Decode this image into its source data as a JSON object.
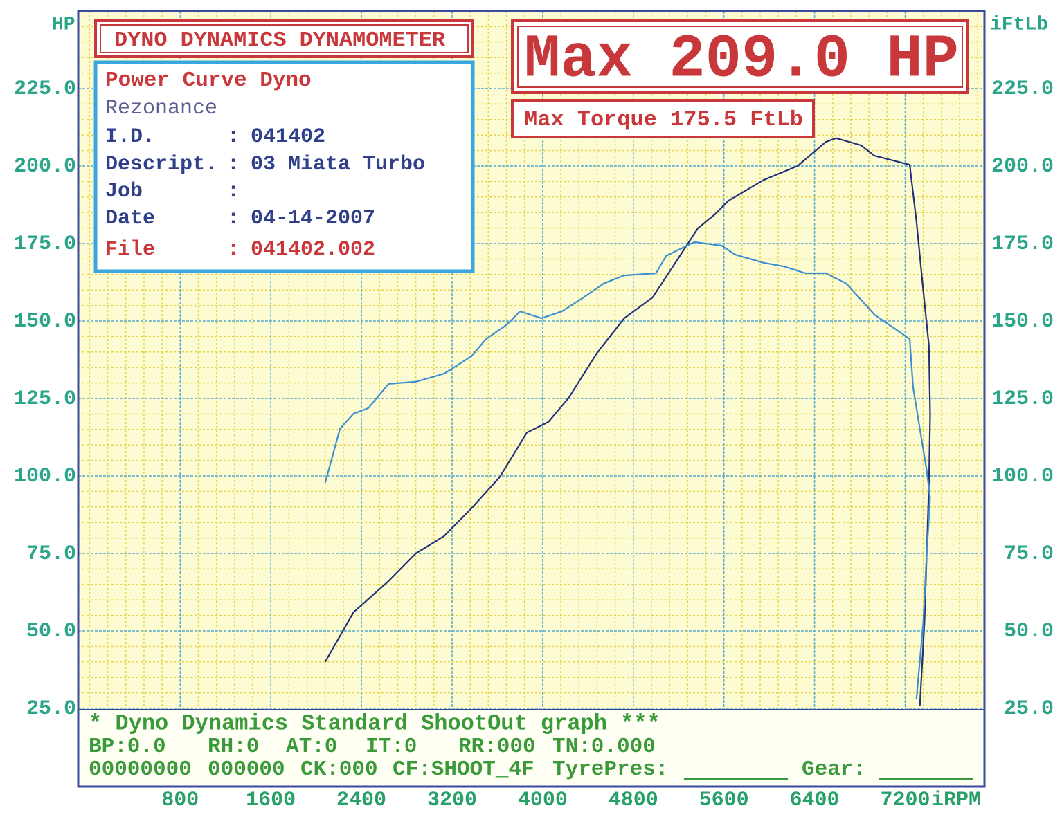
{
  "chart_data": {
    "type": "line",
    "title": "DYNO DYNAMICS DYNAMOMETER",
    "annotations": {
      "max_power": "Max 209.0 HP",
      "max_torque": "Max Torque 175.5 FtLb"
    },
    "y_label": "HP",
    "y2_label": "iFtLb",
    "x_label": "iRPM",
    "xlim": [
      -100,
      7900
    ],
    "xticks": [
      800,
      1600,
      2400,
      3200,
      4000,
      4800,
      5600,
      6400,
      7200
    ],
    "ylim": [
      25,
      250
    ],
    "yticks": [
      {
        "value": 25,
        "label": "25.0"
      },
      {
        "value": 50,
        "label": "50.0"
      },
      {
        "value": 75,
        "label": "75.0"
      },
      {
        "value": 100,
        "label": "100.0"
      },
      {
        "value": 125,
        "label": "125.0"
      },
      {
        "value": 150,
        "label": "150.0"
      },
      {
        "value": 175,
        "label": "175.0"
      },
      {
        "value": 200,
        "label": "200.0"
      },
      {
        "value": 225,
        "label": "225.0"
      }
    ],
    "y2lim": [
      25,
      250
    ],
    "y2ticks": [
      {
        "value": 25,
        "label": "25.0"
      },
      {
        "value": 50,
        "label": "50.0"
      },
      {
        "value": 75,
        "label": "75.0"
      },
      {
        "value": 100,
        "label": "100.0"
      },
      {
        "value": 125,
        "label": "125.0"
      },
      {
        "value": 150,
        "label": "150.0"
      },
      {
        "value": 175,
        "label": "175.0"
      },
      {
        "value": 200,
        "label": "200.0"
      },
      {
        "value": 225,
        "label": "225.0"
      }
    ],
    "grid": true,
    "series": [
      {
        "color": "#22307a",
        "x": [
          2080,
          2330,
          2640,
          2880,
          3130,
          3370,
          3620,
          3860,
          4050,
          4230,
          4480,
          4720,
          4970,
          5150,
          5370,
          5520,
          5640,
          5950,
          6250,
          6500,
          6590,
          6810,
          6930,
          7240,
          7300,
          7360,
          7410,
          7420,
          7410,
          7390,
          7370,
          7330
        ],
        "values": [
          40.0,
          56.0,
          66.1,
          75.0,
          80.6,
          89.5,
          99.6,
          114.0,
          117.4,
          125.2,
          139.7,
          150.9,
          157.6,
          167.6,
          179.9,
          184.4,
          188.8,
          195.5,
          200.0,
          207.8,
          209.0,
          206.7,
          203.3,
          200.4,
          182.1,
          159.8,
          142.0,
          119.6,
          97.3,
          75.0,
          52.7,
          25.9
        ]
      },
      {
        "color": "#3b8fd0",
        "axis": "y2",
        "x": [
          2080,
          2210,
          2330,
          2460,
          2640,
          2880,
          3130,
          3370,
          3500,
          3680,
          3800,
          3990,
          4170,
          4360,
          4540,
          4720,
          5000,
          5090,
          5340,
          5580,
          5700,
          5950,
          6130,
          6320,
          6500,
          6680,
          6930,
          7110,
          7240,
          7270,
          7330,
          7390,
          7420,
          7390,
          7360,
          7300
        ],
        "values": [
          97.8,
          115.2,
          120.1,
          121.9,
          129.7,
          130.4,
          133.0,
          138.6,
          144.2,
          148.7,
          153.1,
          150.9,
          153.1,
          157.6,
          162.1,
          164.7,
          165.4,
          171.0,
          175.5,
          174.3,
          171.4,
          168.8,
          167.6,
          165.4,
          165.4,
          162.1,
          152.0,
          147.5,
          144.2,
          128.6,
          115.2,
          101.8,
          92.9,
          75.0,
          52.7,
          28.1
        ]
      }
    ]
  },
  "info_box": {
    "title": "Power Curve Dyno",
    "operator": "Rezonance",
    "separator": ":",
    "fields": [
      {
        "label": "I.D.",
        "value": "041402"
      },
      {
        "label": "Descript.",
        "value": "03 Miata Turbo"
      },
      {
        "label": "Job"
      },
      {
        "label": "Date",
        "value": "04-14-2007"
      },
      {
        "label": "File",
        "value": "041402.002"
      }
    ]
  },
  "footer": {
    "heading": "* Dyno Dynamics Standard ShootOut graph ***",
    "rows": [
      [
        "BP:0.0",
        "RH:0",
        "AT:0",
        "IT:0",
        "RR:000",
        "TN:0.000"
      ],
      [
        "00000000",
        "000000",
        "CK:000",
        "CF:SHOOT_4F",
        "TyrePres:",
        "Gear:"
      ]
    ]
  }
}
